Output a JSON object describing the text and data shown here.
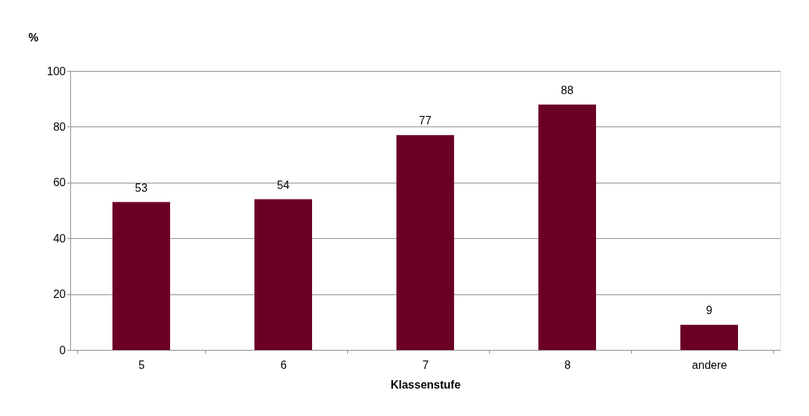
{
  "chart_data": {
    "type": "bar",
    "xlabel": "Klassenstufe",
    "ylabel": "%",
    "categories": [
      "5",
      "6",
      "7",
      "8",
      "andere"
    ],
    "values": [
      53,
      54,
      77,
      88,
      9
    ],
    "color": "#6b0026",
    "ylim": [
      0,
      100
    ],
    "yticks": [
      0,
      20,
      40,
      60,
      80,
      100
    ],
    "grid": "y",
    "data_labels": true
  }
}
